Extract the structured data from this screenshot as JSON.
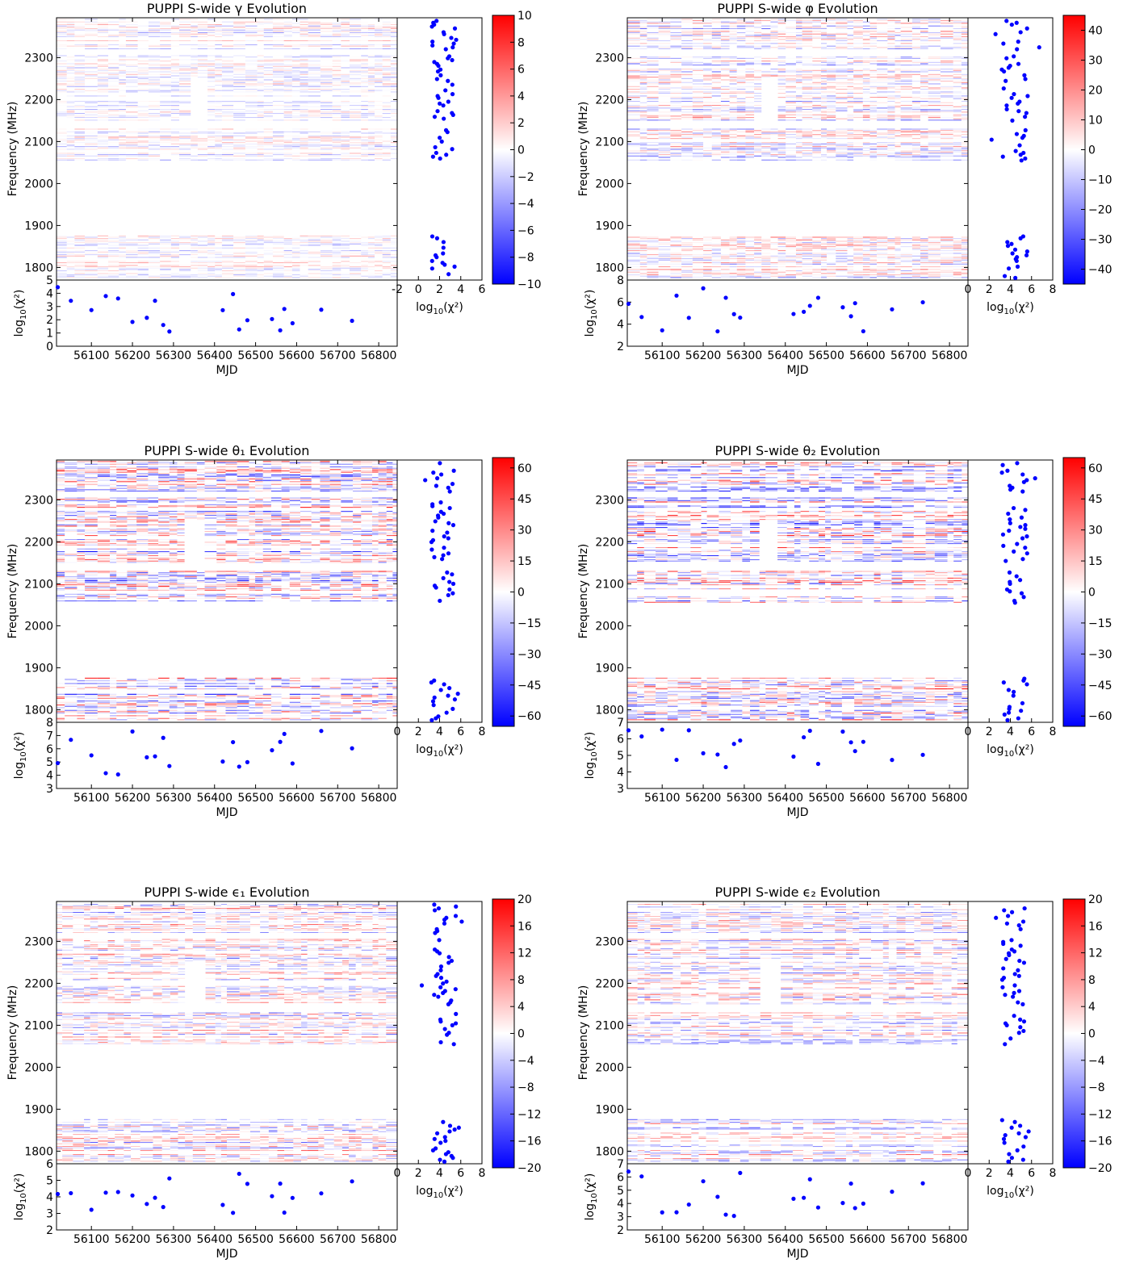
{
  "chart_data": [
    {
      "type": "heatmap",
      "title": "PUPPI S-wide γ Evolution",
      "xlabel": "MJD",
      "ylabel": "Frequency (MHz)",
      "xlim": [
        56015,
        56845
      ],
      "ylim": [
        1770,
        2395
      ],
      "x_ticks": [
        56100,
        56200,
        56300,
        56400,
        56500,
        56600,
        56700,
        56800
      ],
      "y_ticks": [
        1800,
        1900,
        2000,
        2100,
        2200,
        2300
      ],
      "colorbar": {
        "min": -10,
        "max": 10,
        "ticks": [
          10,
          8,
          6,
          4,
          2,
          0,
          -2,
          -4,
          -6,
          -8,
          -10
        ],
        "colors": [
          "#0000ff",
          "#ffffff",
          "#ff0000"
        ]
      },
      "bottom_panel": {
        "ylabel": "log10(χ²)",
        "ylim": [
          0,
          5
        ],
        "y_ticks": [
          0,
          1,
          2,
          3,
          4,
          5
        ]
      },
      "side_panel": {
        "xlabel": "log10(χ²)",
        "xlim": [
          -2,
          6
        ],
        "x_ticks": [
          -2,
          0,
          2,
          4,
          6
        ]
      }
    },
    {
      "type": "heatmap",
      "title": "PUPPI S-wide φ Evolution",
      "xlabel": "MJD",
      "ylabel": "Frequency (MHz)",
      "xlim": [
        56015,
        56845
      ],
      "ylim": [
        1770,
        2395
      ],
      "x_ticks": [
        56100,
        56200,
        56300,
        56400,
        56500,
        56600,
        56700,
        56800
      ],
      "y_ticks": [
        1800,
        1900,
        2000,
        2100,
        2200,
        2300
      ],
      "colorbar": {
        "min": -45,
        "max": 45,
        "ticks": [
          40,
          30,
          20,
          10,
          0,
          -10,
          -20,
          -30,
          -40
        ],
        "colors": [
          "#0000ff",
          "#ffffff",
          "#ff0000"
        ]
      },
      "bottom_panel": {
        "ylabel": "log10(χ²)",
        "ylim": [
          2,
          8
        ],
        "y_ticks": [
          2,
          4,
          6,
          8
        ]
      },
      "side_panel": {
        "xlabel": "log10(χ²)",
        "xlim": [
          0,
          8
        ],
        "x_ticks": [
          0,
          2,
          4,
          6,
          8
        ]
      }
    },
    {
      "type": "heatmap",
      "title": "PUPPI S-wide θ₁ Evolution",
      "xlabel": "MJD",
      "ylabel": "Frequency (MHz)",
      "xlim": [
        56015,
        56845
      ],
      "ylim": [
        1770,
        2395
      ],
      "x_ticks": [
        56100,
        56200,
        56300,
        56400,
        56500,
        56600,
        56700,
        56800
      ],
      "y_ticks": [
        1800,
        1900,
        2000,
        2100,
        2200,
        2300
      ],
      "colorbar": {
        "min": -65,
        "max": 65,
        "ticks": [
          60,
          45,
          30,
          15,
          0,
          -15,
          -30,
          -45,
          -60
        ],
        "colors": [
          "#0000ff",
          "#ffffff",
          "#ff0000"
        ]
      },
      "bottom_panel": {
        "ylabel": "log10(χ²)",
        "ylim": [
          3,
          8
        ],
        "y_ticks": [
          3,
          4,
          5,
          6,
          7,
          8
        ]
      },
      "side_panel": {
        "xlabel": "log10(χ²)",
        "xlim": [
          0,
          8
        ],
        "x_ticks": [
          0,
          2,
          4,
          6,
          8
        ]
      }
    },
    {
      "type": "heatmap",
      "title": "PUPPI S-wide θ₂ Evolution",
      "xlabel": "MJD",
      "ylabel": "Frequency (MHz)",
      "xlim": [
        56015,
        56845
      ],
      "ylim": [
        1770,
        2395
      ],
      "x_ticks": [
        56100,
        56200,
        56300,
        56400,
        56500,
        56600,
        56700,
        56800
      ],
      "y_ticks": [
        1800,
        1900,
        2000,
        2100,
        2200,
        2300
      ],
      "colorbar": {
        "min": -65,
        "max": 65,
        "ticks": [
          60,
          45,
          30,
          15,
          0,
          -15,
          -30,
          -45,
          -60
        ],
        "colors": [
          "#0000ff",
          "#ffffff",
          "#ff0000"
        ]
      },
      "bottom_panel": {
        "ylabel": "log10(χ²)",
        "ylim": [
          3,
          7
        ],
        "y_ticks": [
          3,
          4,
          5,
          6,
          7
        ]
      },
      "side_panel": {
        "xlabel": "log10(χ²)",
        "xlim": [
          0,
          8
        ],
        "x_ticks": [
          0,
          2,
          4,
          6,
          8
        ]
      }
    },
    {
      "type": "heatmap",
      "title": "PUPPI S-wide ϵ₁ Evolution",
      "xlabel": "MJD",
      "ylabel": "Frequency (MHz)",
      "xlim": [
        56015,
        56845
      ],
      "ylim": [
        1770,
        2395
      ],
      "x_ticks": [
        56100,
        56200,
        56300,
        56400,
        56500,
        56600,
        56700,
        56800
      ],
      "y_ticks": [
        1800,
        1900,
        2000,
        2100,
        2200,
        2300
      ],
      "colorbar": {
        "min": -20,
        "max": 20,
        "ticks": [
          20,
          16,
          12,
          8,
          4,
          0,
          -4,
          -8,
          -12,
          -16,
          -20
        ],
        "colors": [
          "#0000ff",
          "#ffffff",
          "#ff0000"
        ]
      },
      "bottom_panel": {
        "ylabel": "log10(χ²)",
        "ylim": [
          2,
          6
        ],
        "y_ticks": [
          2,
          3,
          4,
          5,
          6
        ]
      },
      "side_panel": {
        "xlabel": "log10(χ²)",
        "xlim": [
          0,
          8
        ],
        "x_ticks": [
          0,
          2,
          4,
          6,
          8
        ]
      }
    },
    {
      "type": "heatmap",
      "title": "PUPPI S-wide ϵ₂ Evolution",
      "xlabel": "MJD",
      "ylabel": "Frequency (MHz)",
      "xlim": [
        56015,
        56845
      ],
      "ylim": [
        1770,
        2395
      ],
      "x_ticks": [
        56100,
        56200,
        56300,
        56400,
        56500,
        56600,
        56700,
        56800
      ],
      "y_ticks": [
        1800,
        1900,
        2000,
        2100,
        2200,
        2300
      ],
      "colorbar": {
        "min": -20,
        "max": 20,
        "ticks": [
          20,
          16,
          12,
          8,
          4,
          0,
          -4,
          -8,
          -12,
          -16,
          -20
        ],
        "colors": [
          "#0000ff",
          "#ffffff",
          "#ff0000"
        ]
      },
      "bottom_panel": {
        "ylabel": "log10(χ²)",
        "ylim": [
          2,
          7
        ],
        "y_ticks": [
          2,
          3,
          4,
          5,
          6,
          7
        ]
      },
      "side_panel": {
        "xlabel": "log10(χ²)",
        "xlim": [
          0,
          8
        ],
        "x_ticks": [
          0,
          2,
          4,
          6,
          8
        ]
      }
    }
  ]
}
